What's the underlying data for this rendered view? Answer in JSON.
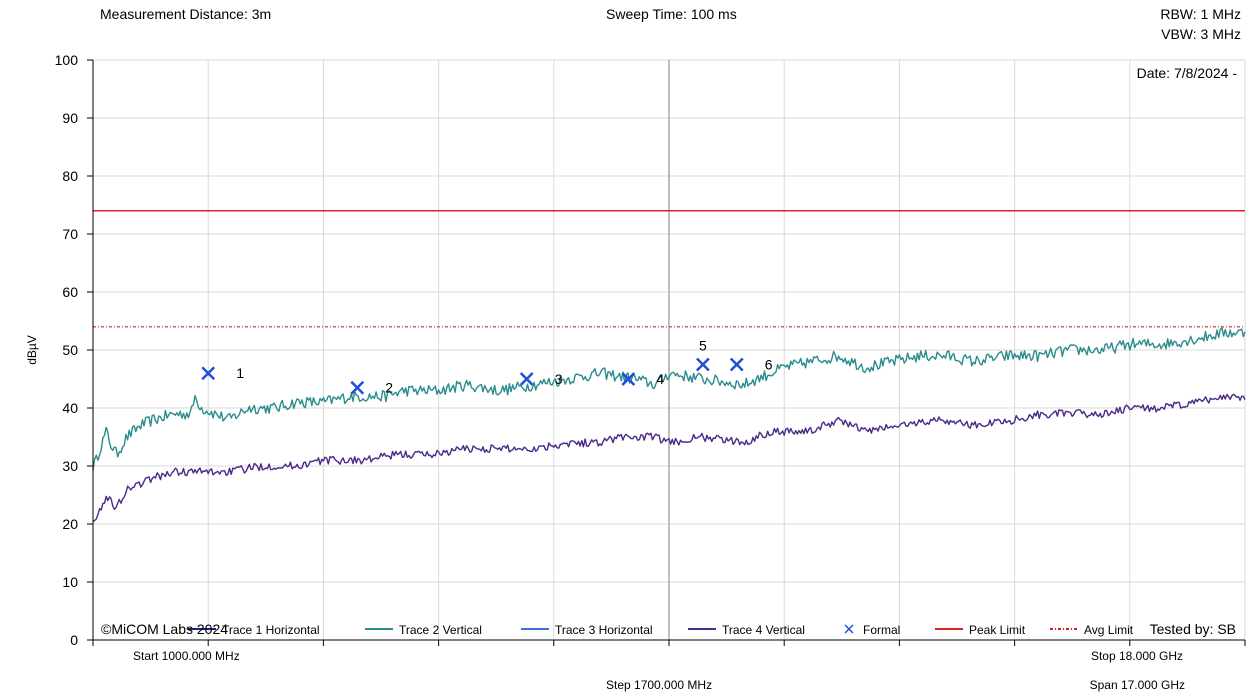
{
  "header": {
    "distance": "Measurement Distance: 3m",
    "sweep": "Sweep Time: 100 ms",
    "rbw": "RBW: 1 MHz",
    "vbw": "VBW: 3 MHz"
  },
  "chart_data": {
    "type": "line",
    "ylabel": "dBµV",
    "ylim": [
      0,
      100
    ],
    "yticks": [
      0,
      10,
      20,
      30,
      40,
      50,
      60,
      70,
      80,
      90,
      100
    ],
    "xlim": [
      1000,
      18000
    ],
    "xunit": "MHz",
    "x_ticks": [
      1000,
      2700,
      4400,
      6100,
      7800,
      9500,
      11200,
      12900,
      14600,
      16300,
      18000
    ],
    "grid": true,
    "date": "Date: 7/8/2024 -",
    "copyright": "©MiCOM Labs 2024",
    "tested_by": "Tested by: SB",
    "x_labels": {
      "start": "Start 1000.000 MHz",
      "step": "Step 1700.000 MHz",
      "stop": "Stop 18.000 GHz",
      "span": "Span 17.000 GHz"
    },
    "colors": {
      "trace1": "#1a237e",
      "trace2": "#2a8c8c",
      "trace3": "#3f6fd8",
      "trace4": "#4a2a8a",
      "formal": "#1f4fd8",
      "peak": "#dd2222",
      "avg": "#dd2222"
    },
    "limits": {
      "peak": 74,
      "avg": 54
    },
    "series": [
      {
        "name": "Trace 2 Vertical",
        "color": "#2a8c8c",
        "x": [
          1000,
          1050,
          1100,
          1200,
          1250,
          1350,
          1500,
          1700,
          1900,
          2200,
          2450,
          2500,
          2600,
          2800,
          3000,
          3300,
          3700,
          4000,
          4400,
          4800,
          5300,
          5600,
          6100,
          6500,
          7000,
          7500,
          8000,
          8500,
          9000,
          9300,
          9500,
          10000,
          10600,
          11000,
          11200,
          11600,
          12000,
          12400,
          12800,
          13200,
          13600,
          14000,
          14500,
          15000,
          15400,
          15900,
          16300,
          16800,
          17300,
          17700,
          18000
        ],
        "y": [
          30,
          31,
          33,
          36,
          34,
          32,
          35,
          37,
          38,
          39,
          39,
          42,
          40,
          39,
          38,
          40,
          40,
          41,
          41,
          42,
          42,
          43,
          43,
          44,
          43,
          44,
          45,
          46,
          45,
          44,
          46,
          45,
          44,
          46,
          47,
          48,
          49,
          47,
          48,
          49,
          49,
          48,
          49,
          49,
          50,
          50,
          51,
          51,
          52,
          53,
          53
        ]
      },
      {
        "name": "Trace 4 Vertical",
        "color": "#4a2a8a",
        "x": [
          1000,
          1100,
          1150,
          1250,
          1300,
          1400,
          1500,
          1700,
          1900,
          2200,
          2500,
          3000,
          3500,
          4000,
          4400,
          5000,
          5500,
          6000,
          6500,
          7000,
          7500,
          8000,
          8400,
          8800,
          9300,
          9500,
          10000,
          10600,
          11000,
          11300,
          11600,
          12000,
          12400,
          12900,
          13500,
          14000,
          14600,
          15000,
          15500,
          16000,
          16300,
          16800,
          17300,
          17700,
          18000
        ],
        "y": [
          21,
          22,
          24,
          25,
          22,
          24,
          26,
          27,
          28,
          29,
          29,
          29,
          30,
          30,
          31,
          31,
          32,
          32,
          33,
          33,
          33,
          34,
          34,
          35,
          35,
          34,
          35,
          34,
          36,
          36,
          36,
          38,
          36,
          37,
          38,
          37,
          38,
          39,
          39,
          39,
          40,
          40,
          41,
          42,
          42
        ]
      }
    ],
    "markers": [
      {
        "label": "1",
        "x": 2700,
        "y": 46
      },
      {
        "label": "2",
        "x": 4900,
        "y": 43.5
      },
      {
        "label": "3",
        "x": 7400,
        "y": 45
      },
      {
        "label": "4",
        "x": 8900,
        "y": 45
      },
      {
        "label": "5",
        "x": 10000,
        "y": 47.5
      },
      {
        "label": "6",
        "x": 10500,
        "y": 47.5
      }
    ],
    "legend": [
      {
        "label": "Trace 1 Horizontal",
        "kind": "line",
        "color": "#1a237e"
      },
      {
        "label": "Trace 2 Vertical",
        "kind": "line",
        "color": "#2a8c8c"
      },
      {
        "label": "Trace 3 Horizontal",
        "kind": "line",
        "color": "#3f6fd8"
      },
      {
        "label": "Trace 4 Vertical",
        "kind": "line",
        "color": "#4a2a8a"
      },
      {
        "label": "Formal",
        "kind": "x",
        "color": "#1f4fd8"
      },
      {
        "label": "Peak Limit",
        "kind": "line",
        "color": "#dd2222"
      },
      {
        "label": "Avg Limit",
        "kind": "dashdot",
        "color": "#dd2222"
      }
    ]
  }
}
